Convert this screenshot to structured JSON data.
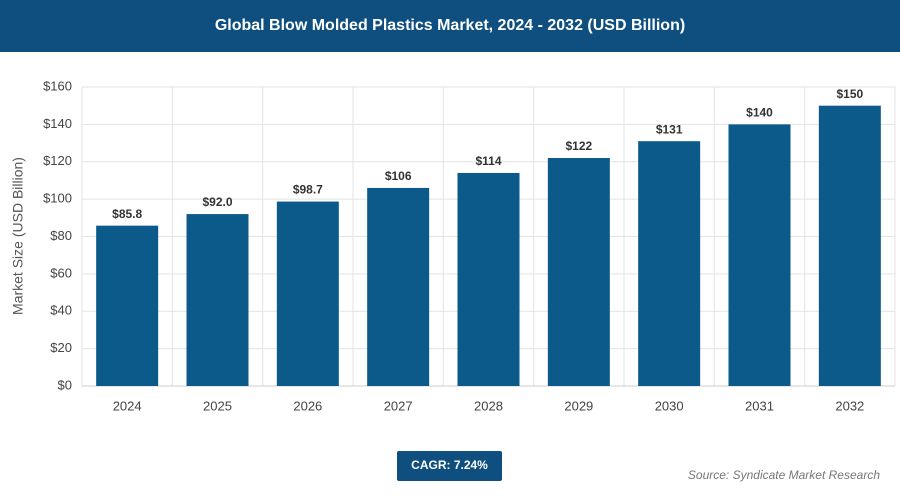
{
  "chart_data": {
    "type": "bar",
    "title": "Global Blow Molded Plastics Market, 2024 - 2032 (USD Billion)",
    "y_label": "Market Size (USD Billion)",
    "categories": [
      "2024",
      "2025",
      "2026",
      "2027",
      "2028",
      "2029",
      "2030",
      "2031",
      "2032"
    ],
    "values": [
      85.8,
      92,
      98.7,
      106,
      114,
      122,
      131,
      140,
      150
    ],
    "value_labels": [
      "$85.8",
      "$92.0",
      "$98.7",
      "$106",
      "$114",
      "$122",
      "$131",
      "$140",
      "$150"
    ],
    "color": "#0c5a8a",
    "ylim": [
      0,
      160
    ],
    "yticks": [
      {
        "value": 0,
        "label": "$0"
      },
      {
        "value": 20,
        "label": "$20"
      },
      {
        "value": 40,
        "label": "$40"
      },
      {
        "value": 60,
        "label": "$60"
      },
      {
        "value": 80,
        "label": "$80"
      },
      {
        "value": 100,
        "label": "$100"
      },
      {
        "value": 120,
        "label": "$120"
      },
      {
        "value": 140,
        "label": "$140"
      },
      {
        "value": 160,
        "label": "$160"
      }
    ],
    "grid": true,
    "cagr": "CAGR: 7.24%",
    "source": "Source: Syndicate Market Research"
  }
}
